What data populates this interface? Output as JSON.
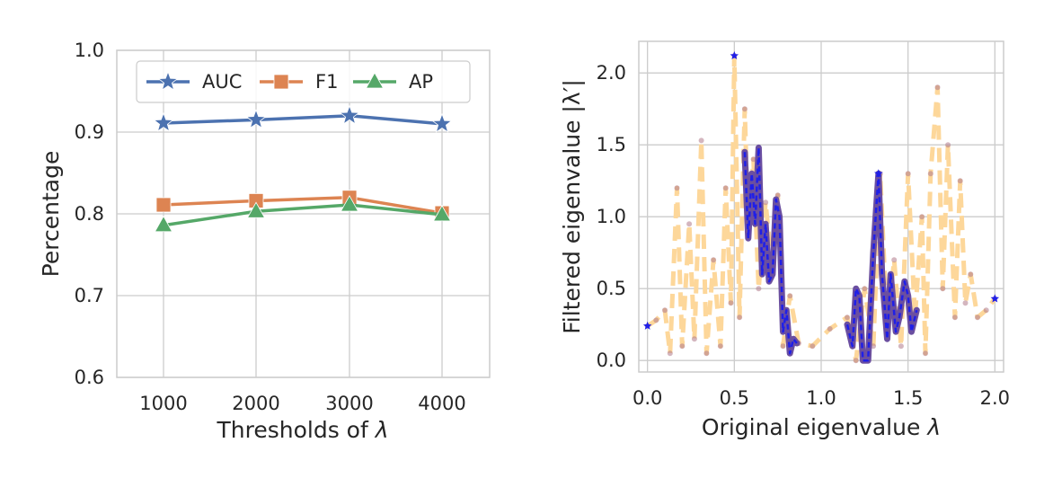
{
  "colors": {
    "auc": "#4c72b0",
    "f1": "#dd8452",
    "ap": "#55a868",
    "grid": "#cccccc",
    "spine": "#cccccc",
    "dashed": "#fdd79a",
    "blue_trace": "#1f1fe8",
    "purple_trace": "#6b4fa0",
    "dots": "#b07a8a"
  },
  "chart_data": [
    {
      "type": "line",
      "xlabel_prefix": "Thresholds of ",
      "xlabel_symbol": "λ",
      "ylabel": "Percentage",
      "categories": [
        "1000",
        "2000",
        "3000",
        "4000"
      ],
      "yticks": [
        "0.6",
        "0.7",
        "0.8",
        "0.9",
        "1.0"
      ],
      "ylim": [
        0.6,
        1.0
      ],
      "grid": true,
      "legend_position": "top",
      "series": [
        {
          "name": "AUC",
          "marker": "star",
          "values": [
            0.911,
            0.915,
            0.92,
            0.91
          ]
        },
        {
          "name": "F1",
          "marker": "square",
          "values": [
            0.811,
            0.816,
            0.82,
            0.801
          ]
        },
        {
          "name": "AP",
          "marker": "triangle",
          "values": [
            0.786,
            0.803,
            0.811,
            0.799
          ]
        }
      ]
    },
    {
      "type": "line",
      "xlabel_prefix": "Original eigenvalue ",
      "xlabel_symbol": "λ",
      "ylabel": "Filtered eigenvalue |λ′|",
      "xticks": [
        "0.0",
        "0.5",
        "1.0",
        "1.5",
        "2.0"
      ],
      "yticks": [
        "0.0",
        "0.5",
        "1.0",
        "1.5",
        "2.0"
      ],
      "xlim": [
        -0.05,
        2.05
      ],
      "ylim": [
        -0.08,
        2.22
      ],
      "grid": true,
      "dashed_points": [
        [
          0.0,
          0.24
        ],
        [
          0.05,
          0.28
        ],
        [
          0.1,
          0.35
        ],
        [
          0.13,
          0.05
        ],
        [
          0.17,
          1.2
        ],
        [
          0.2,
          0.1
        ],
        [
          0.24,
          0.95
        ],
        [
          0.27,
          0.15
        ],
        [
          0.31,
          1.53
        ],
        [
          0.34,
          0.05
        ],
        [
          0.38,
          0.7
        ],
        [
          0.42,
          0.1
        ],
        [
          0.45,
          1.2
        ],
        [
          0.48,
          0.4
        ],
        [
          0.5,
          2.12
        ],
        [
          0.53,
          0.3
        ],
        [
          0.56,
          1.75
        ],
        [
          0.58,
          0.9
        ],
        [
          0.61,
          1.4
        ],
        [
          0.64,
          0.5
        ],
        [
          0.68,
          1.1
        ],
        [
          0.72,
          0.6
        ],
        [
          0.75,
          1.15
        ],
        [
          0.78,
          0.1
        ],
        [
          0.82,
          0.45
        ],
        [
          0.87,
          0.12
        ],
        [
          0.95,
          0.1
        ],
        [
          1.05,
          0.22
        ],
        [
          1.15,
          0.3
        ],
        [
          1.2,
          0.0
        ],
        [
          1.25,
          0.5
        ],
        [
          1.3,
          0.1
        ],
        [
          1.34,
          1.3
        ],
        [
          1.38,
          0.2
        ],
        [
          1.42,
          0.7
        ],
        [
          1.46,
          0.1
        ],
        [
          1.5,
          1.3
        ],
        [
          1.54,
          0.3
        ],
        [
          1.58,
          1.0
        ],
        [
          1.6,
          0.05
        ],
        [
          1.63,
          1.3
        ],
        [
          1.67,
          1.9
        ],
        [
          1.7,
          0.5
        ],
        [
          1.73,
          1.5
        ],
        [
          1.77,
          0.3
        ],
        [
          1.8,
          1.25
        ],
        [
          1.83,
          0.4
        ],
        [
          1.86,
          0.6
        ],
        [
          1.9,
          0.3
        ],
        [
          1.95,
          0.35
        ],
        [
          2.0,
          0.43
        ]
      ],
      "solid_segments": [
        [
          [
            0.56,
            1.45
          ],
          [
            0.58,
            0.85
          ],
          [
            0.6,
            1.3
          ],
          [
            0.62,
            0.95
          ],
          [
            0.64,
            1.48
          ],
          [
            0.66,
            0.6
          ],
          [
            0.68,
            0.95
          ],
          [
            0.7,
            0.55
          ],
          [
            0.72,
            0.6
          ],
          [
            0.74,
            1.12
          ],
          [
            0.76,
            1.0
          ],
          [
            0.78,
            0.2
          ],
          [
            0.8,
            0.35
          ],
          [
            0.82,
            0.05
          ],
          [
            0.84,
            0.15
          ],
          [
            0.86,
            0.12
          ]
        ],
        [
          [
            1.15,
            0.25
          ],
          [
            1.18,
            0.1
          ],
          [
            1.2,
            0.5
          ],
          [
            1.22,
            0.45
          ],
          [
            1.24,
            0.0
          ],
          [
            1.27,
            0.0
          ],
          [
            1.3,
            0.75
          ],
          [
            1.33,
            1.3
          ],
          [
            1.35,
            0.6
          ],
          [
            1.38,
            0.15
          ],
          [
            1.4,
            0.6
          ],
          [
            1.43,
            0.2
          ],
          [
            1.45,
            0.3
          ],
          [
            1.48,
            0.55
          ],
          [
            1.5,
            0.45
          ],
          [
            1.52,
            0.2
          ],
          [
            1.55,
            0.35
          ]
        ]
      ],
      "highlight_points": [
        [
          0.0,
          0.24
        ],
        [
          0.5,
          2.12
        ],
        [
          1.33,
          1.3
        ],
        [
          2.0,
          0.43
        ]
      ]
    }
  ]
}
